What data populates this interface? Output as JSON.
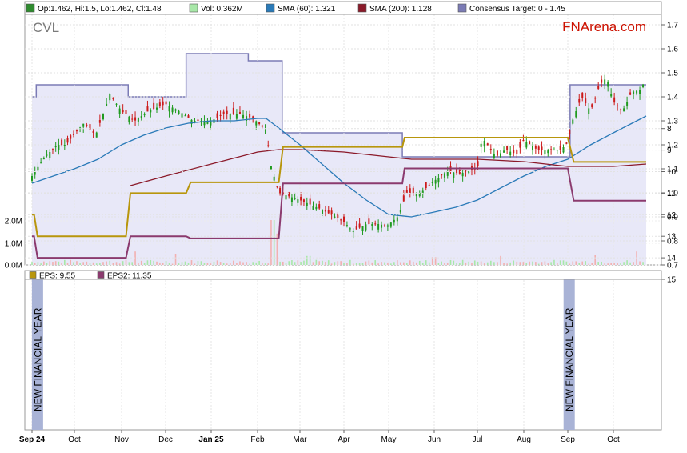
{
  "chart_data": [
    {
      "type": "candlestick",
      "ticker": "CVL",
      "brand": "FNArena.com",
      "legend": [
        {
          "text": "Op:1.462, Hi:1.5, Lo:1.462, Cl:1.48",
          "color": "#2e8b2e"
        },
        {
          "text": "Vol: 0.362M",
          "color": "#a8e8a8"
        },
        {
          "text": "SMA (60): 1.321",
          "color": "#2a7ab8"
        },
        {
          "text": "SMA (200): 1.128",
          "color": "#8b1a2a"
        },
        {
          "text": "Consensus Target: 0 - 1.45",
          "color": "#7b7bb5"
        }
      ],
      "x_labels": [
        "Sep 24",
        "Oct",
        "Nov",
        "Dec",
        "Jan 25",
        "Feb",
        "Mar",
        "Apr",
        "May",
        "Jun",
        "Jul",
        "Aug",
        "Sep",
        "Oct"
      ],
      "x_bold": [
        "Sep 24",
        "Jan 25"
      ],
      "y_ticks": [
        "1.7",
        "1.6",
        "1.5",
        "1.4",
        "1.3",
        "1.2",
        "1.1",
        "1.0",
        "0.9",
        "0.8",
        "0.7"
      ],
      "vol_ticks": [
        "2.0M",
        "1.0M",
        "0.0M"
      ],
      "ylim": [
        0.7,
        1.7
      ],
      "price_path": [
        [
          0,
          1.07
        ],
        [
          0.3,
          1.15
        ],
        [
          0.6,
          1.2
        ],
        [
          0.8,
          1.2
        ],
        [
          1.2,
          1.29
        ],
        [
          1.45,
          1.24
        ],
        [
          1.75,
          1.41
        ],
        [
          2,
          1.34
        ],
        [
          2.3,
          1.3
        ],
        [
          2.6,
          1.34
        ],
        [
          3,
          1.37
        ],
        [
          3.3,
          1.34
        ],
        [
          3.6,
          1.3
        ],
        [
          4,
          1.3
        ],
        [
          4.3,
          1.33
        ],
        [
          4.6,
          1.33
        ],
        [
          4.9,
          1.31
        ],
        [
          5.2,
          1.26
        ],
        [
          5.32,
          1.11
        ],
        [
          5.5,
          1.0
        ],
        [
          6,
          0.97
        ],
        [
          6.5,
          0.93
        ],
        [
          7,
          0.88
        ],
        [
          7.2,
          0.84
        ],
        [
          7.5,
          0.87
        ],
        [
          7.8,
          0.87
        ],
        [
          7.95,
          0.86
        ],
        [
          8.2,
          0.9
        ],
        [
          8.4,
          1.0
        ],
        [
          8.7,
          1.0
        ],
        [
          9,
          1.05
        ],
        [
          9.3,
          1.09
        ],
        [
          9.6,
          1.08
        ],
        [
          10,
          1.1
        ],
        [
          10.1,
          1.23
        ],
        [
          10.4,
          1.15
        ],
        [
          10.6,
          1.18
        ],
        [
          10.85,
          1.16
        ],
        [
          11,
          1.22
        ],
        [
          11.3,
          1.18
        ],
        [
          11.6,
          1.18
        ],
        [
          11.85,
          1.18
        ],
        [
          12,
          1.21
        ],
        [
          12.1,
          1.3
        ],
        [
          12.3,
          1.4
        ],
        [
          12.5,
          1.34
        ],
        [
          12.7,
          1.45
        ],
        [
          12.85,
          1.48
        ],
        [
          13,
          1.38
        ],
        [
          13.2,
          1.34
        ],
        [
          13.4,
          1.42
        ],
        [
          13.6,
          1.43
        ],
        [
          13.72,
          1.48
        ]
      ],
      "sma60": [
        [
          0,
          1.04
        ],
        [
          1,
          1.1
        ],
        [
          1.5,
          1.14
        ],
        [
          2,
          1.2
        ],
        [
          2.5,
          1.24
        ],
        [
          3,
          1.27
        ],
        [
          3.5,
          1.29
        ],
        [
          4,
          1.3
        ],
        [
          4.5,
          1.3
        ],
        [
          5,
          1.31
        ],
        [
          5.2,
          1.31
        ],
        [
          5.5,
          1.27
        ],
        [
          6,
          1.2
        ],
        [
          6.5,
          1.12
        ],
        [
          7,
          1.04
        ],
        [
          7.5,
          0.97
        ],
        [
          8,
          0.91
        ],
        [
          8.5,
          0.9
        ],
        [
          9,
          0.92
        ],
        [
          9.5,
          0.94
        ],
        [
          10,
          0.97
        ],
        [
          10.5,
          1.02
        ],
        [
          11,
          1.07
        ],
        [
          11.5,
          1.11
        ],
        [
          12,
          1.14
        ],
        [
          12.5,
          1.2
        ],
        [
          13,
          1.25
        ],
        [
          13.72,
          1.32
        ]
      ],
      "sma200": [
        [
          2.2,
          1.03
        ],
        [
          3,
          1.07
        ],
        [
          4,
          1.12
        ],
        [
          5,
          1.17
        ],
        [
          5.5,
          1.18
        ],
        [
          6,
          1.18
        ],
        [
          7,
          1.17
        ],
        [
          8,
          1.15
        ],
        [
          8.5,
          1.14
        ],
        [
          9,
          1.14
        ],
        [
          10,
          1.14
        ],
        [
          11,
          1.13
        ],
        [
          11.5,
          1.12
        ],
        [
          12,
          1.11
        ],
        [
          12.5,
          1.11
        ],
        [
          13,
          1.11
        ],
        [
          13.72,
          1.12
        ]
      ],
      "consensus": [
        [
          0,
          1.4
        ],
        [
          0.1,
          1.4
        ],
        [
          0.1,
          1.45
        ],
        [
          2.15,
          1.45
        ],
        [
          2.15,
          1.4
        ],
        [
          3.45,
          1.4
        ],
        [
          3.45,
          1.58
        ],
        [
          4.8,
          1.58
        ],
        [
          4.8,
          1.55
        ],
        [
          5.58,
          1.55
        ],
        [
          5.58,
          1.25
        ],
        [
          8.3,
          1.25
        ],
        [
          8.3,
          1.15
        ],
        [
          12.05,
          1.15
        ],
        [
          12.05,
          1.45
        ],
        [
          13.72,
          1.45
        ]
      ],
      "volume_peaks": [
        [
          5.35,
          2.0
        ],
        [
          5.45,
          1.4
        ],
        [
          2.3,
          0.6
        ],
        [
          3.2,
          0.5
        ],
        [
          6.2,
          0.4
        ],
        [
          9.0,
          0.35
        ],
        [
          10.5,
          0.4
        ],
        [
          12.6,
          0.45
        ],
        [
          13.5,
          0.6
        ]
      ]
    },
    {
      "type": "line",
      "legend": [
        {
          "text": "EPS: 9.55",
          "color": "#b8960c"
        },
        {
          "text": "EPS2: 11.35",
          "color": "#8b3a6e"
        }
      ],
      "y_ticks": [
        "15",
        "14",
        "13",
        "12",
        "11",
        "10",
        "9",
        "8"
      ],
      "ylim": [
        7.8,
        15
      ],
      "annotation": "NEW FINANCIAL YEAR",
      "annotation_x": [
        0.13,
        12.03
      ],
      "series": [
        {
          "name": "EPS",
          "values": [
            [
              0,
              12
            ],
            [
              0.05,
              12
            ],
            [
              0.13,
              13
            ],
            [
              2.1,
              13
            ],
            [
              2.2,
              11
            ],
            [
              3.45,
              11
            ],
            [
              3.55,
              10.5
            ],
            [
              5.5,
              10.5
            ],
            [
              5.6,
              8.85
            ],
            [
              8.3,
              8.85
            ],
            [
              8.35,
              8.42
            ],
            [
              12.0,
              8.42
            ],
            [
              12.13,
              9.55
            ],
            [
              13.72,
              9.55
            ]
          ]
        },
        {
          "name": "EPS2",
          "values": [
            [
              0,
              13
            ],
            [
              0.05,
              13
            ],
            [
              0.13,
              14
            ],
            [
              2.1,
              14
            ],
            [
              2.2,
              13
            ],
            [
              3.45,
              13
            ],
            [
              3.55,
              13.1
            ],
            [
              5.5,
              13.1
            ],
            [
              5.6,
              10.55
            ],
            [
              8.3,
              10.55
            ],
            [
              8.35,
              9.85
            ],
            [
              12.0,
              9.85
            ],
            [
              12.13,
              11.35
            ],
            [
              13.72,
              11.35
            ]
          ]
        }
      ]
    }
  ]
}
